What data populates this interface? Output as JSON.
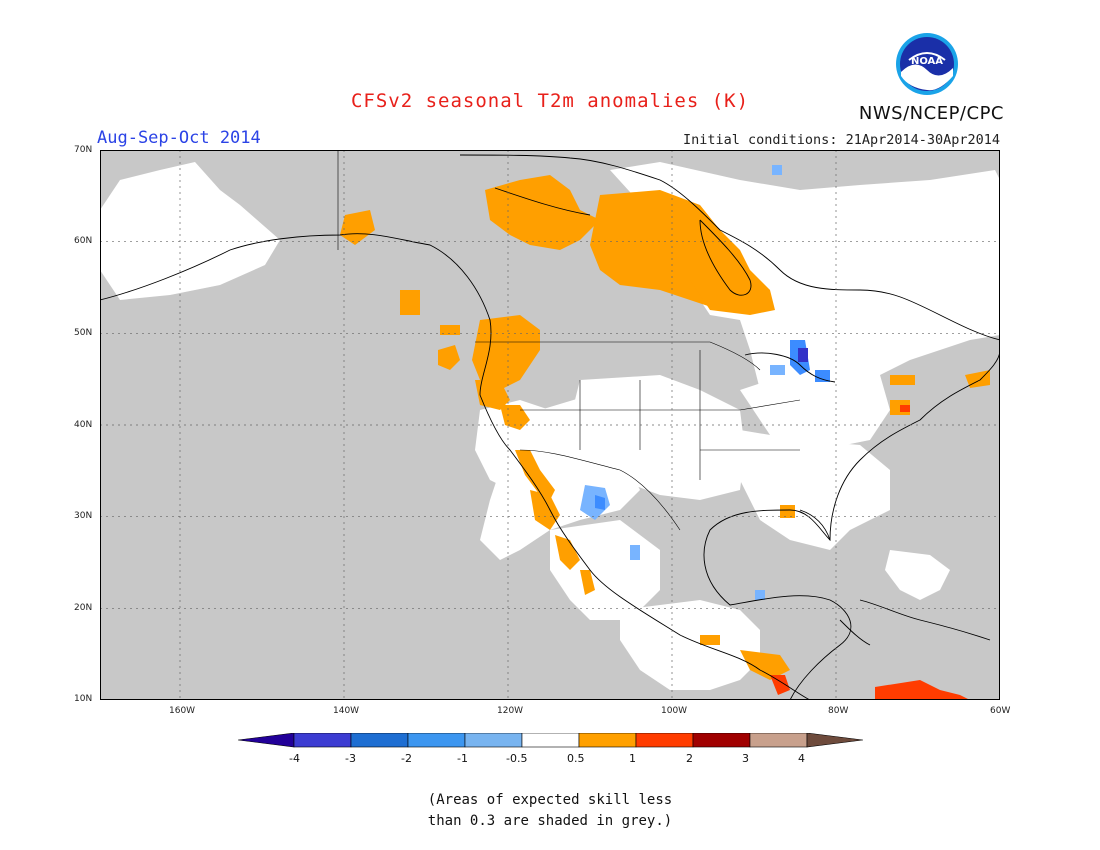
{
  "header": {
    "title": "CFSv2 seasonal T2m anomalies (K)",
    "agency": "NWS/NCEP/CPC",
    "season": "Aug-Sep-Oct 2014",
    "initial_conditions": "Initial conditions: 21Apr2014-30Apr2014",
    "logo_text": "NOAA"
  },
  "map": {
    "lat_labels": [
      "70N",
      "60N",
      "50N",
      "40N",
      "30N",
      "20N",
      "10N"
    ],
    "lon_labels": [
      "160W",
      "140W",
      "120W",
      "100W",
      "80W",
      "60W"
    ],
    "colors": {
      "skill_grey": "#c8c8c8",
      "land_white": "#ffffff",
      "anom_pos_05_1": "#ff9f00",
      "anom_pos_1_2": "#ff3c00",
      "anom_neg_05_1": "#78b4ff",
      "anom_neg_1_2": "#3c8cff",
      "anom_neg_3_4": "#3232c8",
      "coast": "#000000",
      "grid": "#555555"
    }
  },
  "colorbar": {
    "labels": [
      "-4",
      "-3",
      "-2",
      "-1",
      "-0.5",
      "0.5",
      "1",
      "2",
      "3",
      "4"
    ],
    "colors": [
      "#220099",
      "#3c3cd2",
      "#1e6ed2",
      "#3c96f0",
      "#78b4f0",
      "#ffffff",
      "#ffa000",
      "#ff3c00",
      "#a00000",
      "#c8a08c",
      "#6e4b3c"
    ]
  },
  "note": {
    "line1": "(Areas of expected skill less",
    "line2": "than 0.3 are shaded in grey.)"
  }
}
